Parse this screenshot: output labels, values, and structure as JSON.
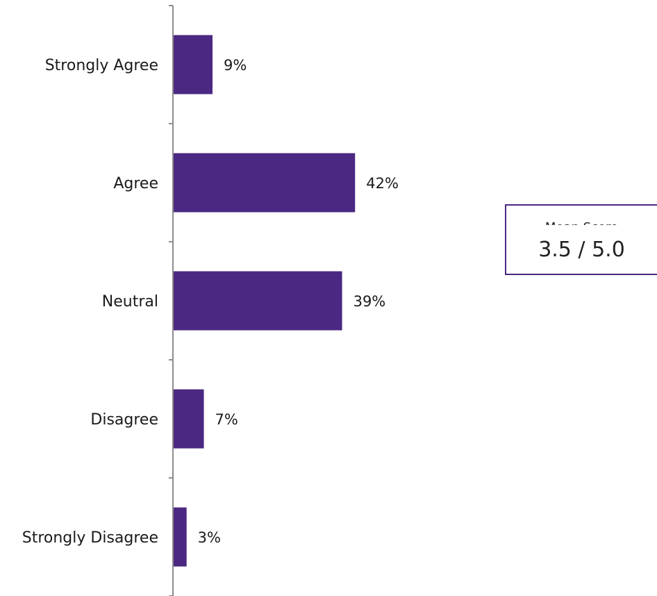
{
  "colors": {
    "bar": "#4b2882",
    "axis": "#8c8c8c",
    "box_border": "#4b2882"
  },
  "score_box": {
    "title": "Mean Score",
    "value": "3.5 / 5.0"
  },
  "chart_data": {
    "type": "bar",
    "orientation": "horizontal",
    "categories": [
      "Strongly Agree",
      "Agree",
      "Neutral",
      "Disagree",
      "Strongly Disagree"
    ],
    "values": [
      9,
      42,
      39,
      7,
      3
    ],
    "value_labels": [
      "9%",
      "42%",
      "39%",
      "7%",
      "3%"
    ],
    "unit": "%",
    "xlim": [
      0,
      100
    ],
    "title": "",
    "xlabel": "",
    "ylabel": "",
    "grid": false,
    "legend": "none"
  }
}
